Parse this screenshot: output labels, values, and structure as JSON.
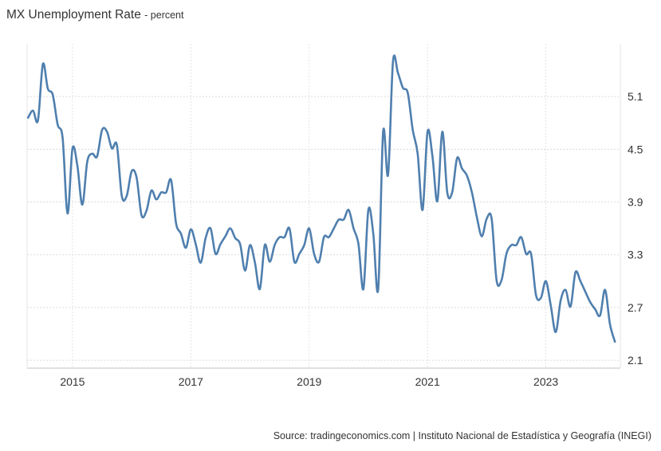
{
  "chart_data": {
    "type": "line",
    "title": "MX Unemployment Rate",
    "subtitle": "- percent",
    "source": "Source: tradingeconomics.com | Instituto Nacional de Estadística y Geografía (INEGI)",
    "xlabel": "",
    "ylabel": "",
    "xlim": [
      "2014-04",
      "2024-03"
    ],
    "ylim": [
      2.01,
      5.7
    ],
    "x_ticks": [
      "2015",
      "2017",
      "2019",
      "2021",
      "2023"
    ],
    "y_ticks": [
      "2.1",
      "2.7",
      "3.3",
      "3.9",
      "4.5",
      "5.1"
    ],
    "y_axis_side": "right",
    "grid": true,
    "line_color": "#4f7fae",
    "series": [
      {
        "points": [
          [
            "2014-04",
            4.86
          ],
          [
            "2014-05",
            4.94
          ],
          [
            "2014-06",
            4.83
          ],
          [
            "2014-07",
            5.47
          ],
          [
            "2014-08",
            5.19
          ],
          [
            "2014-09",
            5.12
          ],
          [
            "2014-10",
            4.78
          ],
          [
            "2014-11",
            4.63
          ],
          [
            "2014-12",
            3.77
          ],
          [
            "2015-01",
            4.51
          ],
          [
            "2015-02",
            4.31
          ],
          [
            "2015-03",
            3.87
          ],
          [
            "2015-04",
            4.36
          ],
          [
            "2015-05",
            4.45
          ],
          [
            "2015-06",
            4.42
          ],
          [
            "2015-07",
            4.72
          ],
          [
            "2015-08",
            4.7
          ],
          [
            "2015-09",
            4.51
          ],
          [
            "2015-10",
            4.55
          ],
          [
            "2015-11",
            3.97
          ],
          [
            "2015-12",
            3.97
          ],
          [
            "2016-01",
            4.25
          ],
          [
            "2016-02",
            4.18
          ],
          [
            "2016-03",
            3.75
          ],
          [
            "2016-04",
            3.8
          ],
          [
            "2016-05",
            4.03
          ],
          [
            "2016-06",
            3.93
          ],
          [
            "2016-07",
            4.01
          ],
          [
            "2016-08",
            4.01
          ],
          [
            "2016-09",
            4.15
          ],
          [
            "2016-10",
            3.66
          ],
          [
            "2016-11",
            3.54
          ],
          [
            "2016-12",
            3.38
          ],
          [
            "2017-01",
            3.59
          ],
          [
            "2017-02",
            3.42
          ],
          [
            "2017-03",
            3.21
          ],
          [
            "2017-04",
            3.49
          ],
          [
            "2017-05",
            3.6
          ],
          [
            "2017-06",
            3.31
          ],
          [
            "2017-07",
            3.42
          ],
          [
            "2017-08",
            3.51
          ],
          [
            "2017-09",
            3.6
          ],
          [
            "2017-10",
            3.49
          ],
          [
            "2017-11",
            3.42
          ],
          [
            "2017-12",
            3.12
          ],
          [
            "2018-01",
            3.41
          ],
          [
            "2018-02",
            3.21
          ],
          [
            "2018-03",
            2.91
          ],
          [
            "2018-04",
            3.41
          ],
          [
            "2018-05",
            3.22
          ],
          [
            "2018-06",
            3.41
          ],
          [
            "2018-07",
            3.5
          ],
          [
            "2018-08",
            3.5
          ],
          [
            "2018-09",
            3.6
          ],
          [
            "2018-10",
            3.22
          ],
          [
            "2018-11",
            3.31
          ],
          [
            "2018-12",
            3.41
          ],
          [
            "2019-01",
            3.6
          ],
          [
            "2019-02",
            3.31
          ],
          [
            "2019-03",
            3.22
          ],
          [
            "2019-04",
            3.5
          ],
          [
            "2019-05",
            3.5
          ],
          [
            "2019-06",
            3.6
          ],
          [
            "2019-07",
            3.7
          ],
          [
            "2019-08",
            3.7
          ],
          [
            "2019-09",
            3.81
          ],
          [
            "2019-10",
            3.6
          ],
          [
            "2019-11",
            3.42
          ],
          [
            "2019-12",
            2.91
          ],
          [
            "2020-01",
            3.81
          ],
          [
            "2020-02",
            3.54
          ],
          [
            "2020-03",
            2.91
          ],
          [
            "2020-04",
            4.7
          ],
          [
            "2020-05",
            4.21
          ],
          [
            "2020-06",
            5.5
          ],
          [
            "2020-07",
            5.37
          ],
          [
            "2020-08",
            5.2
          ],
          [
            "2020-09",
            5.14
          ],
          [
            "2020-10",
            4.72
          ],
          [
            "2020-11",
            4.45
          ],
          [
            "2020-12",
            3.81
          ],
          [
            "2021-01",
            4.7
          ],
          [
            "2021-02",
            4.42
          ],
          [
            "2021-03",
            3.91
          ],
          [
            "2021-04",
            4.7
          ],
          [
            "2021-05",
            4.01
          ],
          [
            "2021-06",
            4.01
          ],
          [
            "2021-07",
            4.4
          ],
          [
            "2021-08",
            4.28
          ],
          [
            "2021-09",
            4.2
          ],
          [
            "2021-10",
            4.01
          ],
          [
            "2021-11",
            3.73
          ],
          [
            "2021-12",
            3.51
          ],
          [
            "2022-01",
            3.71
          ],
          [
            "2022-02",
            3.71
          ],
          [
            "2022-03",
            3.01
          ],
          [
            "2022-04",
            3.01
          ],
          [
            "2022-05",
            3.31
          ],
          [
            "2022-06",
            3.41
          ],
          [
            "2022-07",
            3.41
          ],
          [
            "2022-08",
            3.5
          ],
          [
            "2022-09",
            3.31
          ],
          [
            "2022-10",
            3.31
          ],
          [
            "2022-11",
            2.84
          ],
          [
            "2022-12",
            2.81
          ],
          [
            "2023-01",
            3.0
          ],
          [
            "2023-02",
            2.72
          ],
          [
            "2023-03",
            2.42
          ],
          [
            "2023-04",
            2.78
          ],
          [
            "2023-05",
            2.9
          ],
          [
            "2023-06",
            2.71
          ],
          [
            "2023-07",
            3.1
          ],
          [
            "2023-08",
            3.0
          ],
          [
            "2023-09",
            2.88
          ],
          [
            "2023-10",
            2.76
          ],
          [
            "2023-11",
            2.68
          ],
          [
            "2023-12",
            2.61
          ],
          [
            "2024-01",
            2.9
          ],
          [
            "2024-02",
            2.51
          ],
          [
            "2024-03",
            2.31
          ]
        ]
      }
    ]
  }
}
